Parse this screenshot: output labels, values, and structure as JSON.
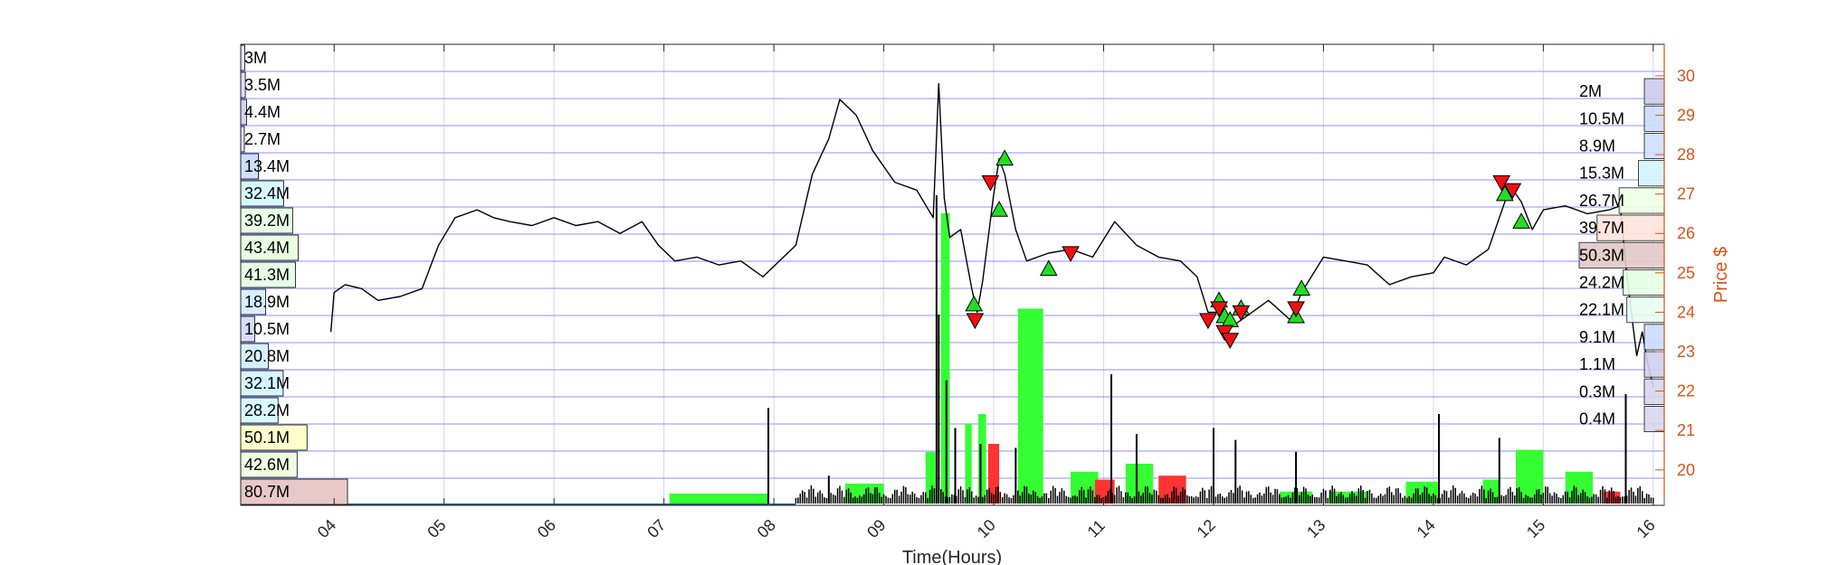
{
  "chart_data": {
    "type": "line",
    "xlabel": "Time(Hours)",
    "ylabel": "Price $",
    "x_ticks": [
      "04",
      "05",
      "06",
      "07",
      "08",
      "09",
      "10",
      "11",
      "12",
      "13",
      "14",
      "15",
      "16"
    ],
    "x_range": [
      3.15,
      16.1
    ],
    "y_ticks": [
      20,
      21,
      22,
      23,
      24,
      25,
      26,
      27,
      28,
      29,
      30
    ],
    "ylim": [
      19.1,
      30.8
    ],
    "grid": true,
    "colors": {
      "price_line": "#000000",
      "right_axis": "#d95319",
      "grid_line": "#8080ff",
      "buy_marker": "#22dd22",
      "sell_marker": "#ee1111",
      "volume_up": "#33ff33",
      "volume_down": "#ff3333",
      "volume_neutral": "#000000"
    },
    "series": [
      {
        "type": "line",
        "x": [
          3.97,
          4.0,
          4.1,
          4.25,
          4.4,
          4.6,
          4.8,
          4.95,
          5.1,
          5.3,
          5.45,
          5.6,
          5.8,
          6.0,
          6.2,
          6.4,
          6.6,
          6.8,
          6.95,
          7.1,
          7.3,
          7.5,
          7.7,
          7.9,
          8.05,
          8.2,
          8.35,
          8.5,
          8.6,
          8.75,
          8.9,
          9.1,
          9.3,
          9.45,
          9.5,
          9.55,
          9.6,
          9.7,
          9.8,
          9.85,
          9.9,
          10.0,
          10.05,
          10.1,
          10.2,
          10.3,
          10.5,
          10.7,
          10.9,
          11.1,
          11.3,
          11.5,
          11.7,
          11.85,
          11.95,
          12.05,
          12.15,
          12.3,
          12.5,
          12.7,
          12.8,
          13.0,
          13.2,
          13.4,
          13.6,
          13.8,
          14.0,
          14.1,
          14.3,
          14.5,
          14.6,
          14.7,
          14.8,
          14.9,
          15.0,
          15.2,
          15.4,
          15.6,
          15.7,
          15.75,
          15.8,
          15.85,
          15.9,
          15.95,
          16.0
        ],
        "y": [
          23.5,
          24.5,
          24.7,
          24.6,
          24.3,
          24.4,
          24.6,
          25.7,
          26.4,
          26.6,
          26.4,
          26.3,
          26.2,
          26.4,
          26.2,
          26.3,
          26.0,
          26.3,
          25.7,
          25.3,
          25.4,
          25.2,
          25.3,
          24.9,
          25.3,
          25.7,
          27.5,
          28.4,
          29.4,
          29.0,
          28.1,
          27.3,
          27.1,
          26.4,
          29.8,
          26.9,
          25.9,
          26.1,
          24.6,
          24.0,
          24.8,
          27.0,
          27.9,
          27.5,
          26.1,
          25.3,
          25.5,
          25.6,
          25.4,
          26.3,
          25.7,
          25.4,
          25.3,
          24.9,
          24.0,
          24.0,
          23.6,
          23.9,
          24.3,
          23.8,
          24.5,
          25.4,
          25.3,
          25.2,
          24.7,
          24.9,
          25.0,
          25.4,
          25.2,
          25.6,
          26.4,
          27.2,
          26.8,
          26.1,
          26.6,
          26.7,
          26.5,
          26.6,
          26.7,
          25.2,
          24.0,
          22.9,
          23.5,
          22.7,
          22.1
        ]
      }
    ],
    "buy_markers": [
      {
        "x": 9.82,
        "y": 24.2
      },
      {
        "x": 10.05,
        "y": 26.6
      },
      {
        "x": 10.1,
        "y": 27.9
      },
      {
        "x": 10.5,
        "y": 25.1
      },
      {
        "x": 12.05,
        "y": 24.3
      },
      {
        "x": 12.1,
        "y": 23.9
      },
      {
        "x": 12.15,
        "y": 23.8
      },
      {
        "x": 12.25,
        "y": 24.1
      },
      {
        "x": 12.75,
        "y": 23.9
      },
      {
        "x": 12.8,
        "y": 24.6
      },
      {
        "x": 14.65,
        "y": 27.0
      },
      {
        "x": 14.8,
        "y": 26.3
      }
    ],
    "sell_markers": [
      {
        "x": 9.83,
        "y": 23.8
      },
      {
        "x": 9.97,
        "y": 27.3
      },
      {
        "x": 10.7,
        "y": 25.5
      },
      {
        "x": 11.95,
        "y": 23.8
      },
      {
        "x": 12.05,
        "y": 24.1
      },
      {
        "x": 12.1,
        "y": 23.5
      },
      {
        "x": 12.15,
        "y": 23.3
      },
      {
        "x": 12.25,
        "y": 24.0
      },
      {
        "x": 12.75,
        "y": 24.1
      },
      {
        "x": 14.62,
        "y": 27.3
      },
      {
        "x": 14.72,
        "y": 27.1
      }
    ],
    "volume_profile_left": {
      "labels": [
        "3M",
        "3.5M",
        "4.4M",
        "2.7M",
        "13.4M",
        "32.4M",
        "39.2M",
        "43.4M",
        "41.3M",
        "18.9M",
        "10.5M",
        "20.8M",
        "32.1M",
        "28.2M",
        "50.1M",
        "42.6M",
        "80.7M"
      ],
      "values": [
        3,
        3.5,
        4.4,
        2.7,
        13.4,
        32.4,
        39.2,
        43.4,
        41.3,
        18.9,
        10.5,
        20.8,
        32.1,
        28.2,
        50.1,
        42.6,
        80.7
      ],
      "colors": [
        "#e8e0ff",
        "#ddddff",
        "#d2d2ff",
        "#e0e0ff",
        "#cce0ff",
        "#d6f8ff",
        "#e8ffe8",
        "#e8ffe0",
        "#e6ffe6",
        "#d6f0ff",
        "#d8dcff",
        "#d6f0ff",
        "#d6f4ff",
        "#d8f8ff",
        "#ffffcc",
        "#eeffe0",
        "#e8c8c8"
      ]
    },
    "volume_profile_right": {
      "labels": [
        "2M",
        "10.5M",
        "8.9M",
        "15.3M",
        "26.7M",
        "39.7M",
        "50.3M",
        "24.2M",
        "22.1M",
        "9.1M",
        "1.1M",
        "0.3M",
        "0.4M"
      ],
      "values": [
        2,
        10.5,
        8.9,
        15.3,
        26.7,
        39.7,
        50.3,
        24.2,
        22.1,
        9.1,
        1.1,
        0.3,
        0.4
      ],
      "colors": [
        "#ccccf0",
        "#ccdcff",
        "#d0e0ff",
        "#d4f4ff",
        "#eeffe6",
        "#ffe4dc",
        "#e4c8c8",
        "#e6ffe6",
        "#e6fff0",
        "#ccdcff",
        "#d0d0f0",
        "#d6d6f0",
        "#d6d6f0"
      ]
    },
    "volume_bars": [
      {
        "x0": 7.05,
        "x1": 7.95,
        "v": 0.05,
        "c": "up"
      },
      {
        "x0": 8.65,
        "x1": 9.0,
        "v": 0.1,
        "c": "up"
      },
      {
        "x0": 9.38,
        "x1": 9.47,
        "v": 0.26,
        "c": "up"
      },
      {
        "x0": 9.52,
        "x1": 9.6,
        "v": 1.46,
        "c": "up"
      },
      {
        "x0": 9.74,
        "x1": 9.8,
        "v": 0.4,
        "c": "up"
      },
      {
        "x0": 9.86,
        "x1": 9.93,
        "v": 0.45,
        "c": "up"
      },
      {
        "x0": 9.95,
        "x1": 10.05,
        "v": 0.3,
        "c": "down"
      },
      {
        "x0": 10.22,
        "x1": 10.45,
        "v": 0.98,
        "c": "up"
      },
      {
        "x0": 10.7,
        "x1": 10.95,
        "v": 0.16,
        "c": "up"
      },
      {
        "x0": 10.92,
        "x1": 11.1,
        "v": 0.12,
        "c": "down"
      },
      {
        "x0": 11.2,
        "x1": 11.45,
        "v": 0.2,
        "c": "up"
      },
      {
        "x0": 11.5,
        "x1": 11.75,
        "v": 0.14,
        "c": "down"
      },
      {
        "x0": 12.6,
        "x1": 12.9,
        "v": 0.06,
        "c": "up"
      },
      {
        "x0": 13.05,
        "x1": 13.4,
        "v": 0.06,
        "c": "up"
      },
      {
        "x0": 13.75,
        "x1": 14.05,
        "v": 0.11,
        "c": "up"
      },
      {
        "x0": 14.45,
        "x1": 14.6,
        "v": 0.12,
        "c": "up"
      },
      {
        "x0": 14.75,
        "x1": 15.0,
        "v": 0.27,
        "c": "up"
      },
      {
        "x0": 15.2,
        "x1": 15.45,
        "v": 0.16,
        "c": "up"
      },
      {
        "x0": 15.55,
        "x1": 15.7,
        "v": 0.06,
        "c": "down"
      }
    ],
    "volume_spikes": [
      {
        "x": 7.95,
        "v": 0.48
      },
      {
        "x": 8.5,
        "v": 0.14
      },
      {
        "x": 9.48,
        "v": 1.55
      },
      {
        "x": 9.5,
        "v": 0.95
      },
      {
        "x": 9.57,
        "v": 0.62
      },
      {
        "x": 9.65,
        "v": 0.38
      },
      {
        "x": 9.88,
        "v": 0.3
      },
      {
        "x": 10.2,
        "v": 0.28
      },
      {
        "x": 11.07,
        "v": 0.65
      },
      {
        "x": 11.3,
        "v": 0.35
      },
      {
        "x": 12.0,
        "v": 0.38
      },
      {
        "x": 12.2,
        "v": 0.32
      },
      {
        "x": 12.75,
        "v": 0.26
      },
      {
        "x": 14.05,
        "v": 0.45
      },
      {
        "x": 14.6,
        "v": 0.33
      },
      {
        "x": 15.75,
        "v": 0.55
      }
    ]
  }
}
